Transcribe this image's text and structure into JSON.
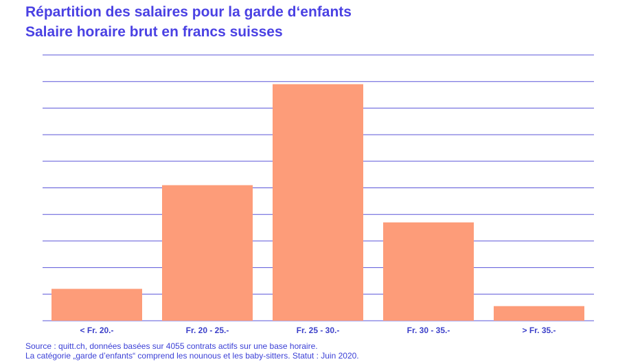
{
  "titles": {
    "line1": "Répartition des salaires pour la garde d‘enfants",
    "line2": "Salaire horaire brut en francs suisses"
  },
  "colors": {
    "bar": "#fd9c79",
    "grid": "#5a55d8",
    "title": "#4a41e3",
    "tick_label": "#3b3fc9"
  },
  "chart_data": {
    "type": "bar",
    "categories": [
      "< Fr. 20.-",
      "Fr. 20 - 25.-",
      "Fr. 25 - 30.-",
      "Fr. 30 - 35.-",
      "> Fr. 35.-"
    ],
    "values": [
      12,
      51,
      89,
      37,
      5.5
    ],
    "ylim": [
      0,
      100
    ],
    "grid": true,
    "xlabel": "",
    "ylabel": ""
  },
  "footer": {
    "source": "Source : quitt.ch, données basées sur 4055 contrats actifs sur une base horaire.",
    "note": "La catégorie „garde d’enfants“ comprend les nounous et les baby-sitters. Statut : Juin 2020."
  }
}
